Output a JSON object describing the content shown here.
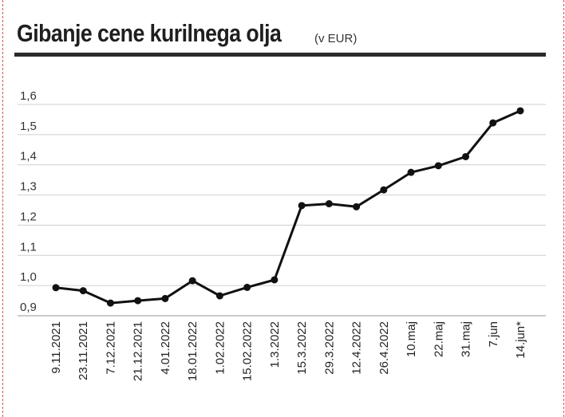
{
  "header": {
    "title": "Gibanje cene kurilnega olja",
    "unit": "(v EUR)"
  },
  "colors": {
    "line": "#111111",
    "grid": "#cfcfcf",
    "rule": "#2b2b2b",
    "frame": "#d9534f"
  },
  "chart_data": {
    "type": "line",
    "title": "Gibanje cene kurilnega olja",
    "ylabel": "",
    "xlabel": "",
    "ylim": [
      0.9,
      1.6
    ],
    "yticks": [
      0.9,
      1.0,
      1.1,
      1.2,
      1.3,
      1.4,
      1.5,
      1.6
    ],
    "ytick_labels": [
      "0,9",
      "1,0",
      "1,1",
      "1,2",
      "1,3",
      "1,4",
      "1,5",
      "1,6"
    ],
    "grid": true,
    "categories": [
      "9.11.2021",
      "23.11.2021",
      "7.12.2021",
      "21.12.2021",
      "4.01.2022",
      "18.01.2022",
      "1.02.2022",
      "15.02.2022",
      "1.3.2022",
      "15.3.2022",
      "29.3.2022",
      "12.4.2022",
      "26.4.2022",
      "10.maj",
      "22.maj",
      "31.maj",
      "7.jun",
      "14.jun*"
    ],
    "values": [
      0.993,
      0.983,
      0.942,
      0.95,
      0.957,
      1.016,
      0.966,
      0.994,
      1.019,
      1.265,
      1.271,
      1.261,
      1.317,
      1.375,
      1.397,
      1.427,
      1.539,
      1.579
    ]
  }
}
